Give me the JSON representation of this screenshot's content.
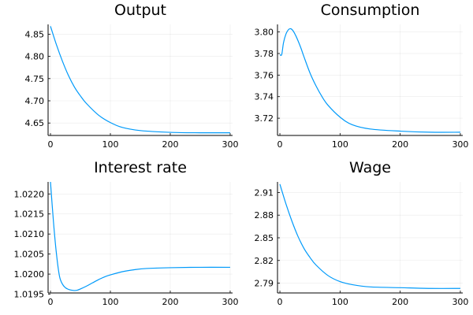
{
  "chart_data": [
    {
      "type": "line",
      "title": "Output",
      "xlim": [
        -4,
        304
      ],
      "ylim": [
        4.622,
        4.872
      ],
      "xticks": [
        0,
        100,
        200,
        300
      ],
      "yticks": [
        4.65,
        4.7,
        4.75,
        4.8,
        4.85
      ],
      "ytick_labels": [
        "4.65",
        "4.70",
        "4.75",
        "4.80",
        "4.85"
      ],
      "grid": true,
      "legend": "none",
      "series": [
        {
          "color": "#009AFA",
          "x": [
            0,
            10,
            20,
            30,
            40,
            50,
            60,
            80,
            100,
            120,
            150,
            200,
            250,
            300
          ],
          "y": [
            4.868,
            4.826,
            4.789,
            4.757,
            4.731,
            4.711,
            4.694,
            4.668,
            4.651,
            4.64,
            4.633,
            4.629,
            4.628,
            4.628
          ]
        }
      ]
    },
    {
      "type": "line",
      "title": "Consumption",
      "xlim": [
        -4,
        304
      ],
      "ylim": [
        3.704,
        3.807
      ],
      "xticks": [
        0,
        100,
        200,
        300
      ],
      "yticks": [
        3.72,
        3.74,
        3.76,
        3.78,
        3.8
      ],
      "ytick_labels": [
        "3.72",
        "3.74",
        "3.76",
        "3.78",
        "3.80"
      ],
      "grid": true,
      "legend": "none",
      "series": [
        {
          "color": "#009AFA",
          "x": [
            0,
            3,
            6,
            10,
            14,
            18,
            22,
            26,
            30,
            35,
            40,
            50,
            60,
            70,
            80,
            100,
            120,
            150,
            200,
            250,
            300
          ],
          "y": [
            3.779,
            3.779,
            3.79,
            3.798,
            3.802,
            3.803,
            3.801,
            3.797,
            3.792,
            3.785,
            3.777,
            3.762,
            3.75,
            3.74,
            3.732,
            3.721,
            3.714,
            3.71,
            3.708,
            3.707,
            3.707
          ]
        }
      ]
    },
    {
      "type": "line",
      "title": "Interest rate",
      "xlim": [
        -4,
        304
      ],
      "ylim": [
        1.01953,
        1.0223
      ],
      "xticks": [
        0,
        100,
        200,
        300
      ],
      "yticks": [
        1.0195,
        1.02,
        1.0205,
        1.021,
        1.0215,
        1.022
      ],
      "ytick_labels": [
        "1.0195",
        "1.0200",
        "1.0205",
        "1.0210",
        "1.0215",
        "1.0220"
      ],
      "grid": true,
      "legend": "none",
      "series": [
        {
          "color": "#009AFA",
          "x": [
            0,
            5,
            10,
            15,
            20,
            25,
            30,
            35,
            40,
            45,
            50,
            60,
            70,
            80,
            90,
            100,
            120,
            140,
            160,
            200,
            250,
            300
          ],
          "y": [
            1.0223,
            1.0213,
            1.0205,
            1.01995,
            1.01975,
            1.01966,
            1.01962,
            1.0196,
            1.01959,
            1.0196,
            1.01963,
            1.0197,
            1.01978,
            1.01986,
            1.01993,
            1.01998,
            1.02006,
            1.02011,
            1.02014,
            1.02016,
            1.02017,
            1.02017
          ]
        }
      ]
    },
    {
      "type": "line",
      "title": "Wage",
      "xlim": [
        -4,
        304
      ],
      "ylim": [
        2.777,
        2.924
      ],
      "xticks": [
        0,
        100,
        200,
        300
      ],
      "yticks": [
        2.79,
        2.82,
        2.85,
        2.88,
        2.91
      ],
      "ytick_labels": [
        "2.79",
        "2.82",
        "2.85",
        "2.88",
        "2.91"
      ],
      "grid": true,
      "legend": "none",
      "series": [
        {
          "color": "#009AFA",
          "x": [
            0,
            10,
            20,
            30,
            40,
            50,
            60,
            80,
            100,
            120,
            150,
            200,
            250,
            300
          ],
          "y": [
            2.921,
            2.895,
            2.872,
            2.852,
            2.836,
            2.824,
            2.814,
            2.8,
            2.792,
            2.788,
            2.785,
            2.784,
            2.783,
            2.783
          ]
        }
      ]
    }
  ]
}
